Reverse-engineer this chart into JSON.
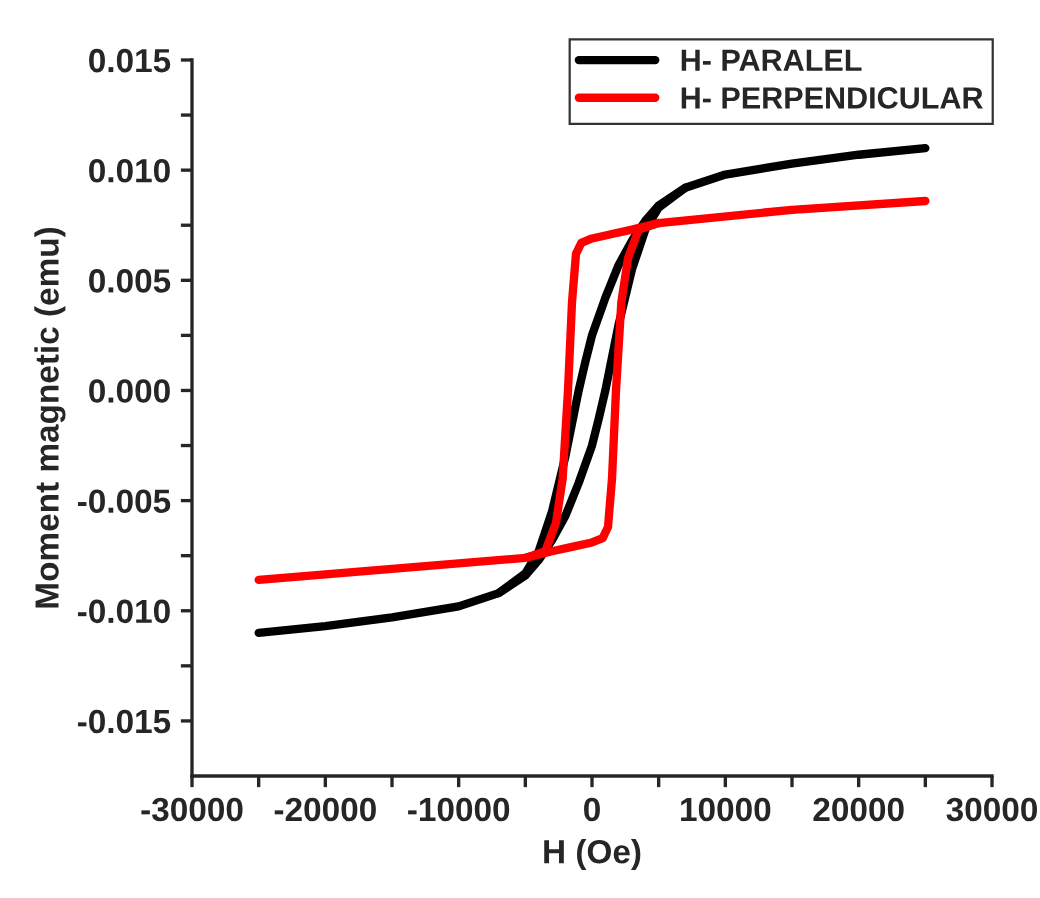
{
  "chart_data": {
    "type": "line",
    "xlabel": "H (Oe)",
    "ylabel": "Moment magnetic (emu)",
    "xlim": [
      -30000,
      30000
    ],
    "xticks": [
      -30000,
      {
        "value": -25000,
        "label": null
      },
      -20000,
      {
        "value": -15000,
        "label": null
      },
      -10000,
      {
        "value": -5000,
        "label": null
      },
      0,
      {
        "value": 5000,
        "label": null
      },
      10000,
      {
        "value": 15000,
        "label": null
      },
      20000,
      {
        "value": 25000,
        "label": null
      },
      30000
    ],
    "ylim": [
      -0.0175,
      0.015
    ],
    "yticks": [
      {
        "value": -0.015,
        "label": "-0.015"
      },
      {
        "value": -0.0125,
        "label": null
      },
      {
        "value": -0.01,
        "label": "-0.010"
      },
      {
        "value": -0.0075,
        "label": null
      },
      {
        "value": -0.005,
        "label": "-0.005"
      },
      {
        "value": -0.0025,
        "label": null
      },
      {
        "value": 0,
        "label": "0.000"
      },
      {
        "value": 0.0025,
        "label": null
      },
      {
        "value": 0.005,
        "label": "0.005"
      },
      {
        "value": 0.0075,
        "label": null
      },
      {
        "value": 0.01,
        "label": "0.010"
      },
      {
        "value": 0.0125,
        "label": null
      },
      {
        "value": 0.015,
        "label": "0.015"
      }
    ],
    "legend": "top right",
    "grid": false,
    "marker": "none",
    "line_style": "solid",
    "series": [
      {
        "name": "H- PARALEL",
        "color": "#000000",
        "x": [
          -25000,
          -20000,
          -15000,
          -10000,
          -7000,
          -5000,
          -4000,
          -3000,
          -2000,
          -1500,
          -1000,
          -500,
          0,
          1000,
          2000,
          3000,
          4000,
          5000,
          7000,
          10000,
          15000,
          20000,
          25000
        ],
        "values": [
          -0.011,
          -0.0107,
          -0.0103,
          -0.0098,
          -0.0092,
          -0.0083,
          -0.0073,
          -0.0055,
          -0.003,
          -0.0015,
          0.0,
          0.0013,
          0.0025,
          0.0042,
          0.0057,
          0.0068,
          0.0077,
          0.0084,
          0.0092,
          0.0098,
          0.0103,
          0.0107,
          0.011
        ]
      },
      {
        "color": "#000000",
        "x": [
          -7000,
          -5000,
          -4000,
          -3000,
          -2000,
          -1000,
          0,
          500,
          1000,
          1500,
          2000,
          3000,
          4000,
          5000,
          7000
        ],
        "values": [
          -0.0092,
          -0.0084,
          -0.0077,
          -0.0068,
          -0.0057,
          -0.0042,
          -0.0025,
          -0.0013,
          0.0,
          0.0015,
          0.003,
          0.0055,
          0.0073,
          0.0083,
          0.0092
        ]
      },
      {
        "name": "H- PERPENDICULAR",
        "color": "#ff0000",
        "x": [
          -25000,
          -15000,
          -5000,
          -3500,
          -2700,
          -2200,
          -1800,
          -1500,
          -1200,
          -800,
          0,
          1500,
          3000,
          5000,
          15000,
          25000
        ],
        "values": [
          -0.0086,
          -0.0081,
          -0.0076,
          -0.0073,
          -0.006,
          -0.004,
          0.0,
          0.004,
          0.0062,
          0.0067,
          0.0069,
          0.0071,
          0.0073,
          0.0076,
          0.0082,
          0.0086
        ]
      },
      {
        "color": "#ff0000",
        "x": [
          -5000,
          -3000,
          -1500,
          0,
          800,
          1200,
          1500,
          1800,
          2200,
          2700,
          3500,
          5000
        ],
        "values": [
          -0.0076,
          -0.0073,
          -0.0071,
          -0.0069,
          -0.0067,
          -0.0062,
          -0.004,
          0.0,
          0.004,
          0.006,
          0.0073,
          0.0076
        ]
      }
    ]
  }
}
